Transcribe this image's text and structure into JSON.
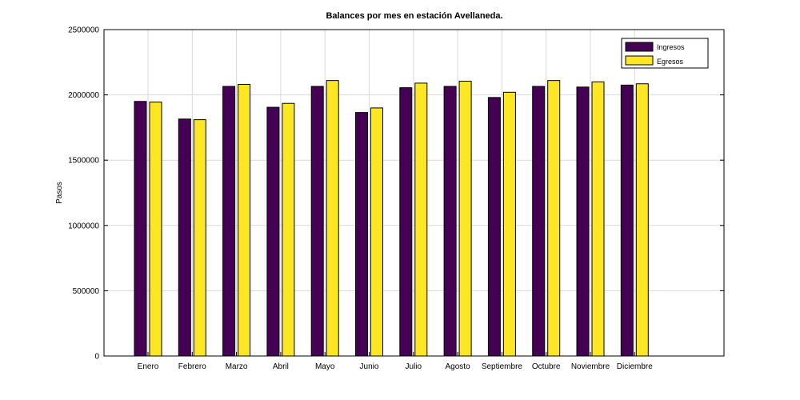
{
  "chart_data": {
    "type": "bar",
    "title": "Balances por mes en estación Avellaneda.",
    "xlabel": "",
    "ylabel": "Pasos",
    "ylim": [
      0,
      2500000
    ],
    "yticks": [
      "0",
      "500000",
      "1000000",
      "1500000",
      "2000000",
      "2500000"
    ],
    "grid": true,
    "legend_position": "top-right",
    "categories": [
      "Enero",
      "Febrero",
      "Marzo",
      "Abril",
      "Mayo",
      "Junio",
      "Julio",
      "Agosto",
      "Septiembre",
      "Octubre",
      "Noviembre",
      "Diciembre"
    ],
    "series": [
      {
        "name": "Ingresos",
        "color": "#440154",
        "values": [
          1950000,
          1815000,
          2065000,
          1905000,
          2065000,
          1865000,
          2055000,
          2065000,
          1980000,
          2065000,
          2060000,
          2075000
        ]
      },
      {
        "name": "Egresos",
        "color": "#fde725",
        "values": [
          1945000,
          1810000,
          2080000,
          1935000,
          2110000,
          1900000,
          2090000,
          2105000,
          2020000,
          2110000,
          2100000,
          2085000
        ]
      }
    ]
  }
}
